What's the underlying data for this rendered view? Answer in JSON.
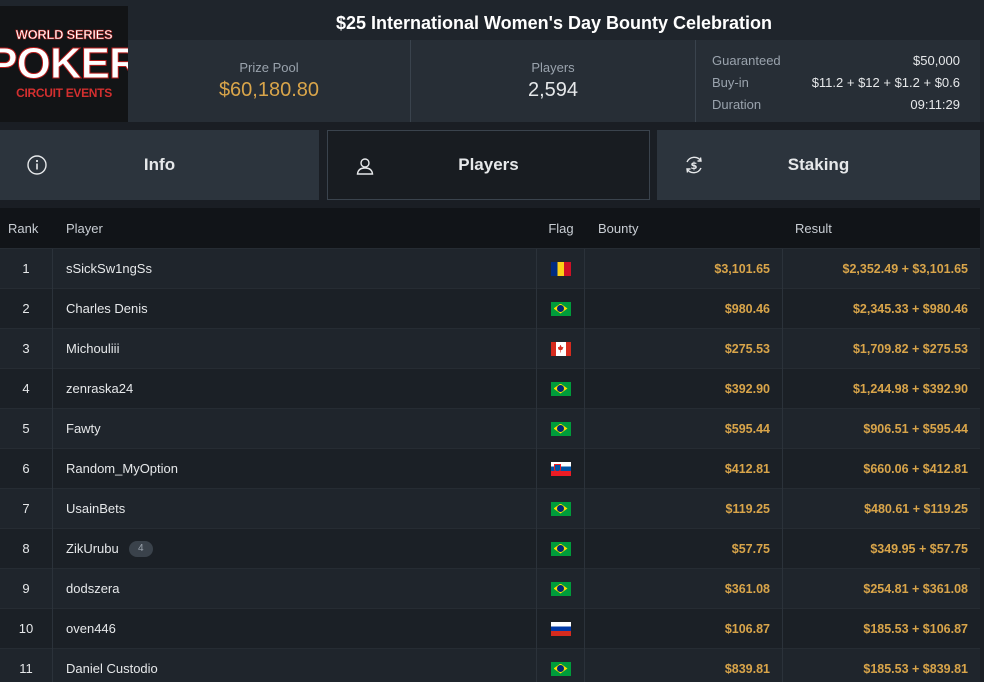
{
  "logo": {
    "line1": "WORLD SERIES",
    "line2": "POKER",
    "line3": "CIRCUIT EVENTS"
  },
  "title": "$25 International Women's Day Bounty Celebration",
  "stats": {
    "prize_pool_label": "Prize Pool",
    "prize_pool_value": "$60,180.80",
    "players_label": "Players",
    "players_value": "2,594"
  },
  "details": {
    "guaranteed_label": "Guaranteed",
    "guaranteed_value": "$50,000",
    "buyin_label": "Buy-in",
    "buyin_value": "$11.2 + $12 + $1.2 + $0.6",
    "duration_label": "Duration",
    "duration_value": "09:11:29"
  },
  "tabs": [
    {
      "label": "Info",
      "icon": "info-icon"
    },
    {
      "label": "Players",
      "icon": "user-icon",
      "active": true
    },
    {
      "label": "Staking",
      "icon": "dollar-cycle-icon"
    }
  ],
  "table": {
    "headers": {
      "rank": "Rank",
      "player": "Player",
      "flag": "Flag",
      "bounty": "Bounty",
      "result": "Result"
    },
    "rows": [
      {
        "rank": "1",
        "player": "sSickSw1ngSs",
        "flag": "ro",
        "bounty": "$3,101.65",
        "result": "$2,352.49 + $3,101.65"
      },
      {
        "rank": "2",
        "player": "Charles Denis",
        "flag": "br",
        "bounty": "$980.46",
        "result": "$2,345.33 + $980.46"
      },
      {
        "rank": "3",
        "player": "Michouliii",
        "flag": "ca",
        "bounty": "$275.53",
        "result": "$1,709.82 + $275.53"
      },
      {
        "rank": "4",
        "player": "zenraska24",
        "flag": "br",
        "bounty": "$392.90",
        "result": "$1,244.98 + $392.90"
      },
      {
        "rank": "5",
        "player": "Fawty",
        "flag": "br",
        "bounty": "$595.44",
        "result": "$906.51 + $595.44"
      },
      {
        "rank": "6",
        "player": "Random_MyOption",
        "flag": "si",
        "bounty": "$412.81",
        "result": "$660.06 + $412.81"
      },
      {
        "rank": "7",
        "player": "UsainBets",
        "flag": "br",
        "bounty": "$119.25",
        "result": "$480.61 + $119.25"
      },
      {
        "rank": "8",
        "player": "ZikUrubu",
        "badge": "4",
        "flag": "br",
        "bounty": "$57.75",
        "result": "$349.95 + $57.75"
      },
      {
        "rank": "9",
        "player": "dodszera",
        "flag": "br",
        "bounty": "$361.08",
        "result": "$254.81 + $361.08"
      },
      {
        "rank": "10",
        "player": "oven446",
        "flag": "ru",
        "bounty": "$106.87",
        "result": "$185.53 + $106.87"
      },
      {
        "rank": "11",
        "player": "Daniel Custodio",
        "flag": "br",
        "bounty": "$839.81",
        "result": "$185.53 + $839.81"
      }
    ]
  },
  "colors": {
    "accent_gold": "#d9a54a",
    "background": "#1a1e24"
  }
}
